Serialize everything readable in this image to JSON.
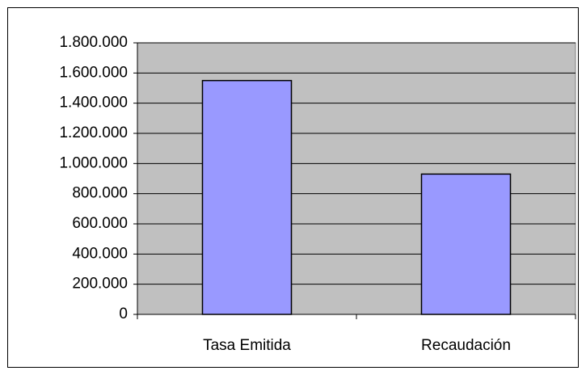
{
  "chart_data": {
    "type": "bar",
    "categories": [
      "Tasa Emitida",
      "Recaudación"
    ],
    "values": [
      1550000,
      930000
    ],
    "color": "#9999ff",
    "ylim": [
      0,
      1800000
    ],
    "yticks": [
      0,
      {
        "value": 200000,
        "label": "200.000"
      },
      {
        "value": 400000,
        "label": "400.000"
      },
      {
        "value": 600000,
        "label": "600.000"
      },
      {
        "value": 800000,
        "label": "800.000"
      },
      {
        "value": 1000000,
        "label": "1.000.000"
      },
      {
        "value": 1200000,
        "label": "1.200.000"
      },
      {
        "value": 1400000,
        "label": "1.400.000"
      },
      {
        "value": 1600000,
        "label": "1.600.000"
      },
      {
        "value": 1800000,
        "label": "1.800.000"
      }
    ],
    "grid": true
  }
}
